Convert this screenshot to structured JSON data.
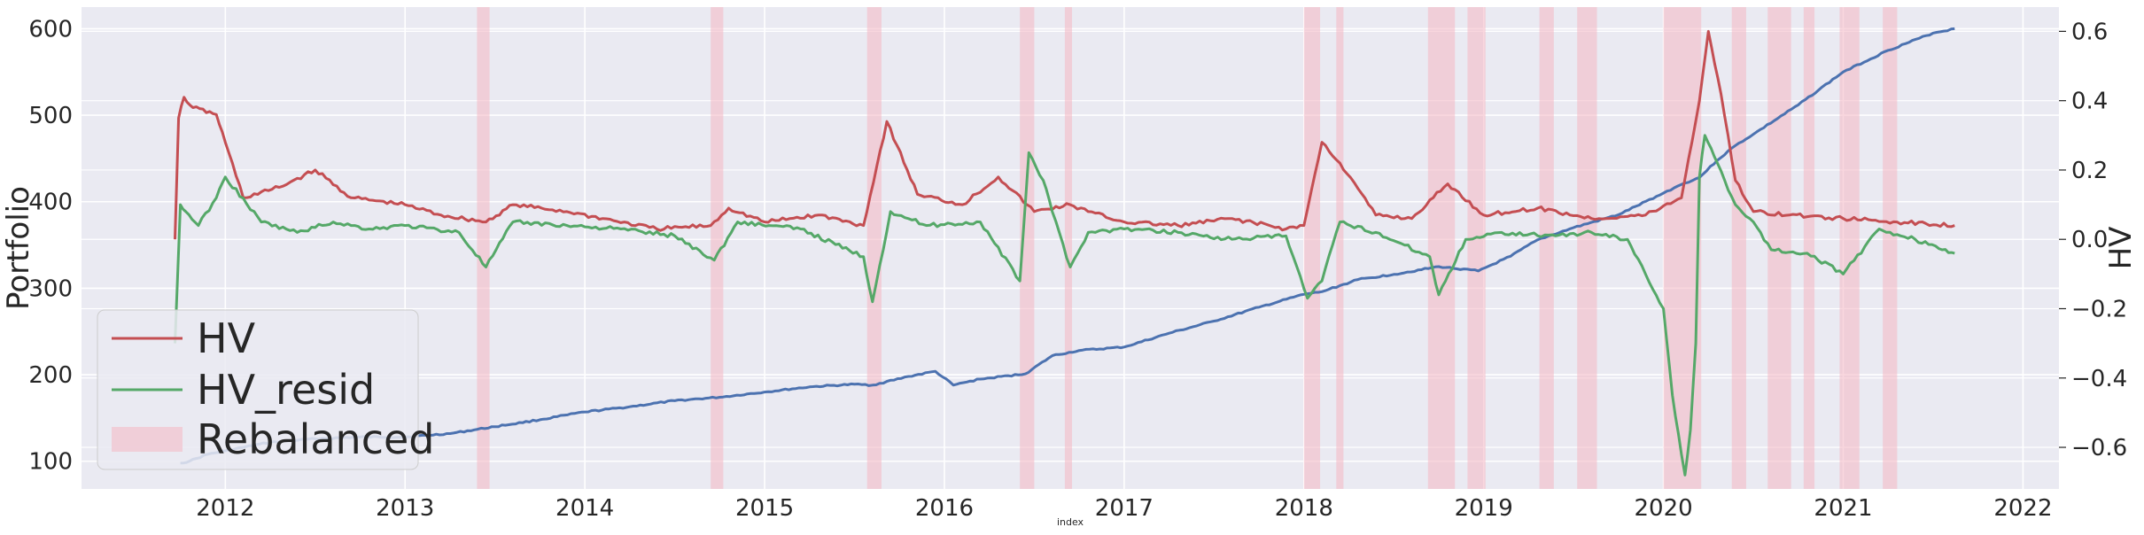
{
  "chart_data": {
    "type": "line",
    "xlabel": "index",
    "ylabel_left": "Portfolio",
    "ylabel_right": "HV",
    "x_range": [
      2011.2,
      2022.2
    ],
    "ylim_left": [
      68,
      625
    ],
    "ylim_right": [
      -0.72,
      0.67
    ],
    "grid": true,
    "legend_position": "lower-left",
    "x_ticks": [
      "2012",
      "2013",
      "2014",
      "2015",
      "2016",
      "2017",
      "2018",
      "2019",
      "2020",
      "2021",
      "2022"
    ],
    "y_ticks_left": [
      "100",
      "200",
      "300",
      "400",
      "500",
      "600"
    ],
    "y_ticks_right": [
      "0.6",
      "0.4",
      "0.2",
      "0.0",
      "−0.2",
      "−0.4",
      "−0.6"
    ],
    "colors": {
      "plot_bg": "#eaeaf2",
      "grid": "#ffffff",
      "portfolio": "#4c72b0",
      "hv": "#c44e52",
      "hv_resid": "#55a868",
      "rebalanced": "#f4b6c2"
    },
    "legend": [
      {
        "label": "HV",
        "kind": "line",
        "color": "#c44e52"
      },
      {
        "label": "HV_resid",
        "kind": "line",
        "color": "#55a868"
      },
      {
        "label": "Rebalanced",
        "kind": "patch",
        "color": "#f4b6c2"
      }
    ],
    "rebalanced_periods": [
      [
        2013.4,
        2013.47
      ],
      [
        2014.7,
        2014.77
      ],
      [
        2015.57,
        2015.65
      ],
      [
        2016.42,
        2016.5
      ],
      [
        2016.67,
        2016.71
      ],
      [
        2018.0,
        2018.09
      ],
      [
        2018.18,
        2018.22
      ],
      [
        2018.69,
        2018.84
      ],
      [
        2018.91,
        2019.01
      ],
      [
        2019.31,
        2019.39
      ],
      [
        2019.52,
        2019.63
      ],
      [
        2020.0,
        2020.21
      ],
      [
        2020.38,
        2020.46
      ],
      [
        2020.58,
        2020.71
      ],
      [
        2020.78,
        2020.84
      ],
      [
        2020.98,
        2021.09
      ],
      [
        2021.22,
        2021.3
      ]
    ],
    "series": [
      {
        "name": "Portfolio",
        "axis": "left",
        "x": [
          2011.75,
          2011.8,
          2011.9,
          2012.0,
          2012.25,
          2012.5,
          2012.75,
          2013.0,
          2013.25,
          2013.5,
          2013.75,
          2014.0,
          2014.25,
          2014.5,
          2014.75,
          2015.0,
          2015.25,
          2015.5,
          2015.6,
          2015.8,
          2015.95,
          2016.05,
          2016.2,
          2016.45,
          2016.6,
          2016.75,
          2017.0,
          2017.25,
          2017.5,
          2017.75,
          2018.0,
          2018.1,
          2018.3,
          2018.5,
          2018.75,
          2018.97,
          2019.15,
          2019.3,
          2019.5,
          2019.75,
          2020.0,
          2020.1,
          2020.2,
          2020.3,
          2020.4,
          2020.5,
          2020.75,
          2021.0,
          2021.25,
          2021.5,
          2021.62
        ],
        "values": [
          98,
          100,
          108,
          112,
          122,
          126,
          128,
          128,
          132,
          140,
          148,
          157,
          163,
          170,
          174,
          180,
          186,
          189,
          188,
          198,
          204,
          188,
          195,
          201,
          222,
          228,
          232,
          248,
          262,
          278,
          293,
          296,
          310,
          316,
          325,
          320,
          337,
          356,
          370,
          385,
          410,
          420,
          428,
          448,
          465,
          478,
          512,
          550,
          575,
          595,
          600
        ]
      },
      {
        "name": "HV",
        "axis": "right",
        "x": [
          2011.72,
          2011.74,
          2011.77,
          2011.82,
          2011.95,
          2012.0,
          2012.1,
          2012.3,
          2012.5,
          2012.7,
          2013.0,
          2013.2,
          2013.45,
          2013.6,
          2013.9,
          2014.1,
          2014.4,
          2014.7,
          2014.8,
          2015.0,
          2015.3,
          2015.55,
          2015.68,
          2015.85,
          2016.1,
          2016.3,
          2016.5,
          2016.7,
          2016.8,
          2017.0,
          2017.3,
          2017.6,
          2017.9,
          2018.0,
          2018.1,
          2018.2,
          2018.4,
          2018.6,
          2018.8,
          2019.0,
          2019.3,
          2019.6,
          2019.9,
          2020.1,
          2020.2,
          2020.25,
          2020.32,
          2020.4,
          2020.5,
          2020.7,
          2021.0,
          2021.3,
          2021.62
        ],
        "values": [
          0.0,
          0.35,
          0.41,
          0.38,
          0.36,
          0.28,
          0.12,
          0.15,
          0.2,
          0.12,
          0.1,
          0.07,
          0.05,
          0.1,
          0.08,
          0.06,
          0.03,
          0.04,
          0.09,
          0.05,
          0.07,
          0.04,
          0.34,
          0.13,
          0.1,
          0.18,
          0.08,
          0.1,
          0.08,
          0.05,
          0.04,
          0.06,
          0.03,
          0.04,
          0.28,
          0.22,
          0.07,
          0.06,
          0.16,
          0.07,
          0.09,
          0.06,
          0.07,
          0.12,
          0.4,
          0.6,
          0.42,
          0.17,
          0.08,
          0.07,
          0.06,
          0.05,
          0.04
        ]
      },
      {
        "name": "HV_resid",
        "axis": "right",
        "x": [
          2011.72,
          2011.75,
          2011.78,
          2011.85,
          2011.95,
          2012.0,
          2012.2,
          2012.4,
          2012.6,
          2012.8,
          2013.0,
          2013.3,
          2013.45,
          2013.6,
          2013.9,
          2014.2,
          2014.5,
          2014.72,
          2014.85,
          2015.2,
          2015.55,
          2015.6,
          2015.7,
          2015.9,
          2016.2,
          2016.42,
          2016.47,
          2016.55,
          2016.6,
          2016.7,
          2016.8,
          2017.0,
          2017.3,
          2017.6,
          2017.9,
          2018.02,
          2018.1,
          2018.2,
          2018.4,
          2018.7,
          2018.75,
          2018.9,
          2019.1,
          2019.4,
          2019.6,
          2019.8,
          2020.0,
          2020.05,
          2020.1,
          2020.12,
          2020.15,
          2020.18,
          2020.2,
          2020.23,
          2020.3,
          2020.4,
          2020.5,
          2020.6,
          2020.8,
          2021.0,
          2021.2,
          2021.4,
          2021.55,
          2021.62
        ],
        "values": [
          -0.3,
          0.1,
          0.08,
          0.04,
          0.12,
          0.18,
          0.05,
          0.02,
          0.05,
          0.03,
          0.04,
          0.02,
          -0.08,
          0.05,
          0.04,
          0.03,
          0.01,
          -0.06,
          0.05,
          0.03,
          -0.05,
          -0.18,
          0.08,
          0.04,
          0.05,
          -0.12,
          0.25,
          0.17,
          0.08,
          -0.08,
          0.02,
          0.03,
          0.02,
          0.0,
          0.01,
          -0.17,
          -0.12,
          0.05,
          0.02,
          -0.05,
          -0.16,
          0.0,
          0.02,
          0.01,
          0.02,
          0.0,
          -0.2,
          -0.45,
          -0.62,
          -0.68,
          -0.55,
          -0.3,
          0.18,
          0.3,
          0.22,
          0.1,
          0.05,
          -0.03,
          -0.04,
          -0.1,
          0.03,
          0.0,
          -0.03,
          -0.04
        ]
      }
    ]
  }
}
